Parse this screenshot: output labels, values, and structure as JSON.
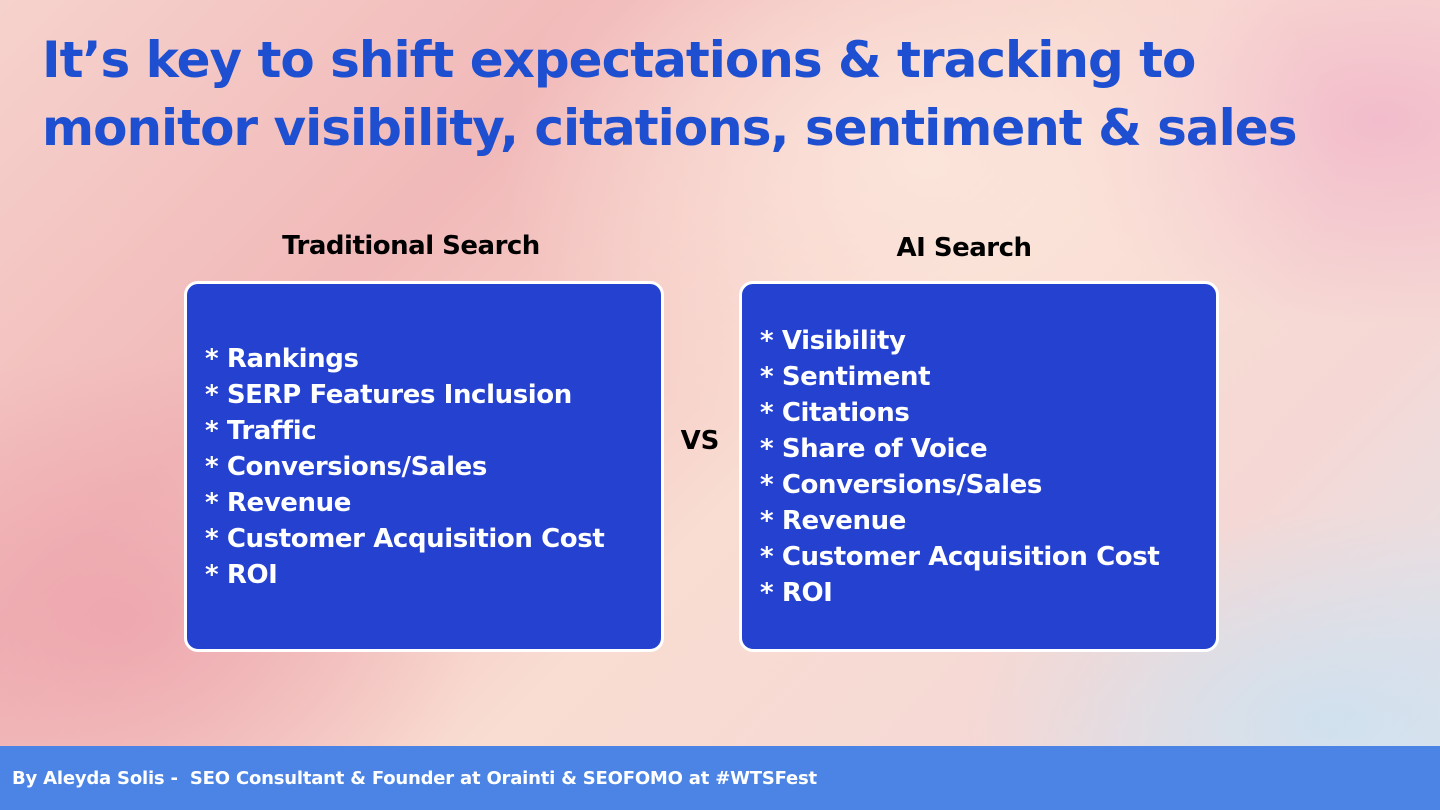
{
  "slide": {
    "title": "It’s key to shift expectations & tracking to monitor visibility, citations, sentiment & sales",
    "vs_label": "VS"
  },
  "traditional": {
    "heading": "Traditional Search",
    "items": [
      "* Rankings",
      "* SERP Features Inclusion",
      "* Traffic",
      "* Conversions/Sales",
      "* Revenue",
      "* Customer Acquisition Cost",
      "* ROI"
    ]
  },
  "ai": {
    "heading": "AI Search",
    "items": [
      "* Visibility",
      "* Sentiment",
      "* Citations",
      "* Share of Voice",
      "* Conversions/Sales",
      "* Revenue",
      "* Customer Acquisition Cost",
      "* ROI"
    ]
  },
  "footer": {
    "text": "By Aleyda Solis -  SEO Consultant & Founder at Orainti & SEOFOMO at #WTSFest"
  },
  "colors": {
    "title": "#1e4fd1",
    "box_fill": "#2541d0",
    "footer_bar": "#4c84e6"
  }
}
